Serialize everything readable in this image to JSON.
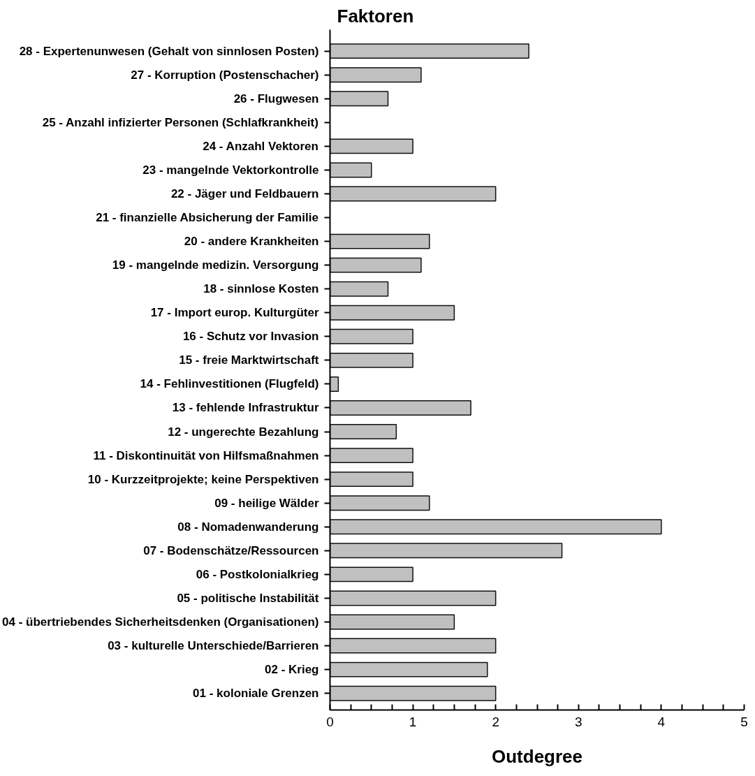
{
  "chart_data": {
    "type": "bar",
    "orientation": "horizontal",
    "title": "Faktoren",
    "xlabel": "Outdegree",
    "categories": [
      "28 - Expertenunwesen (Gehalt von sinnlosen Posten)",
      "27 - Korruption (Postenschacher)",
      "26 - Flugwesen",
      "25 - Anzahl infizierter Personen (Schlafkrankheit)",
      "24 - Anzahl Vektoren",
      "23 - mangelnde Vektorkontrolle",
      "22 - Jäger und Feldbauern",
      "21 - finanzielle Absicherung der Familie",
      "20 - andere Krankheiten",
      "19 - mangelnde medizin. Versorgung",
      "18 - sinnlose Kosten",
      "17 - Import europ. Kulturgüter",
      "16 - Schutz vor Invasion",
      "15 - freie Marktwirtschaft",
      "14 - Fehlinvestitionen (Flugfeld)",
      "13 - fehlende Infrastruktur",
      "12 - ungerechte Bezahlung",
      "11 - Diskontinuität von Hilfsmaßnahmen",
      "10 - Kurzzeitprojekte; keine Perspektiven",
      "09 - heilige Wälder",
      "08 - Nomadenwanderung",
      "07 - Bodenschätze/Ressourcen",
      "06 - Postkolonialkrieg",
      "05 - politische Instabilität",
      "04 - übertriebendes Sicherheitsdenken (Organisationen)",
      "03 - kulturelle Unterschiede/Barrieren",
      "02 - Krieg",
      "01 - koloniale Grenzen"
    ],
    "values": [
      2.4,
      1.1,
      0.7,
      null,
      1.0,
      0.5,
      2.0,
      null,
      1.2,
      1.1,
      0.7,
      1.5,
      1.0,
      1.0,
      0.1,
      1.7,
      0.8,
      1.0,
      1.0,
      1.2,
      4.0,
      2.8,
      1.0,
      2.0,
      1.5,
      2.0,
      1.9,
      2.0
    ],
    "color": "#c0c0c0",
    "xlim": [
      0,
      5
    ],
    "xticks": [
      0,
      {
        "value": 0.25,
        "label": null
      },
      {
        "value": 0.5,
        "label": null
      },
      {
        "value": 0.75,
        "label": null
      },
      1,
      {
        "value": 1.25,
        "label": null
      },
      {
        "value": 1.5,
        "label": null
      },
      {
        "value": 1.75,
        "label": null
      },
      2,
      {
        "value": 2.25,
        "label": null
      },
      {
        "value": 2.5,
        "label": null
      },
      {
        "value": 2.75,
        "label": null
      },
      3,
      {
        "value": 3.25,
        "label": null
      },
      {
        "value": 3.5,
        "label": null
      },
      {
        "value": 3.75,
        "label": null
      },
      4,
      {
        "value": 4.25,
        "label": null
      },
      {
        "value": 4.5,
        "label": null
      },
      {
        "value": 4.75,
        "label": null
      },
      5
    ],
    "grid": false
  }
}
